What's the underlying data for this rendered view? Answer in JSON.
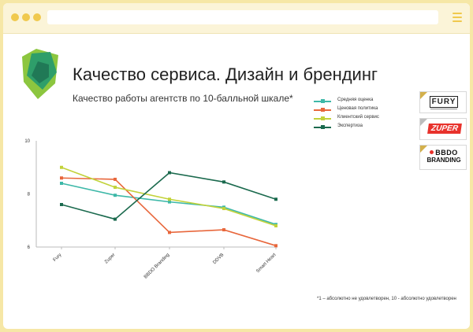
{
  "window": {
    "icons": [
      "window-dot-icon",
      "hamburger-menu-icon"
    ]
  },
  "slide": {
    "title": "Качество сервиса. Дизайн и брендинг",
    "subtitle": "Качество работы агентств по 10-балльной шкале*",
    "footnote": "*1 – абсолютно не удовлетворен, 10 - абсолютно удовлетворен",
    "brands": {
      "fury": "FURY",
      "zuper": "ZUPER",
      "bbdo_line1": "BBDO",
      "bbdo_line2": "BRANDING"
    }
  },
  "chart_data": {
    "type": "line",
    "title": "",
    "categories": [
      "Fury",
      "Zuper",
      "BBDO Branding",
      "DDVB",
      "Smart Heart"
    ],
    "ylim": [
      6,
      10
    ],
    "yticks": [
      6,
      8,
      10
    ],
    "grid": false,
    "legend_position": "top-right",
    "series": [
      {
        "name": "Средняя оценка",
        "color": "#3db8a8",
        "values": [
          8.4,
          7.95,
          7.7,
          7.5,
          6.85
        ]
      },
      {
        "name": "Ценовая политика",
        "color": "#e8673c",
        "values": [
          8.6,
          8.55,
          6.55,
          6.65,
          6.05
        ]
      },
      {
        "name": "Клиентский сервис",
        "color": "#c2d23a",
        "values": [
          9.0,
          8.25,
          7.8,
          7.45,
          6.8
        ]
      },
      {
        "name": "Экспертиза",
        "color": "#1b6a4e",
        "values": [
          7.6,
          7.05,
          8.8,
          8.45,
          7.8
        ]
      }
    ]
  }
}
